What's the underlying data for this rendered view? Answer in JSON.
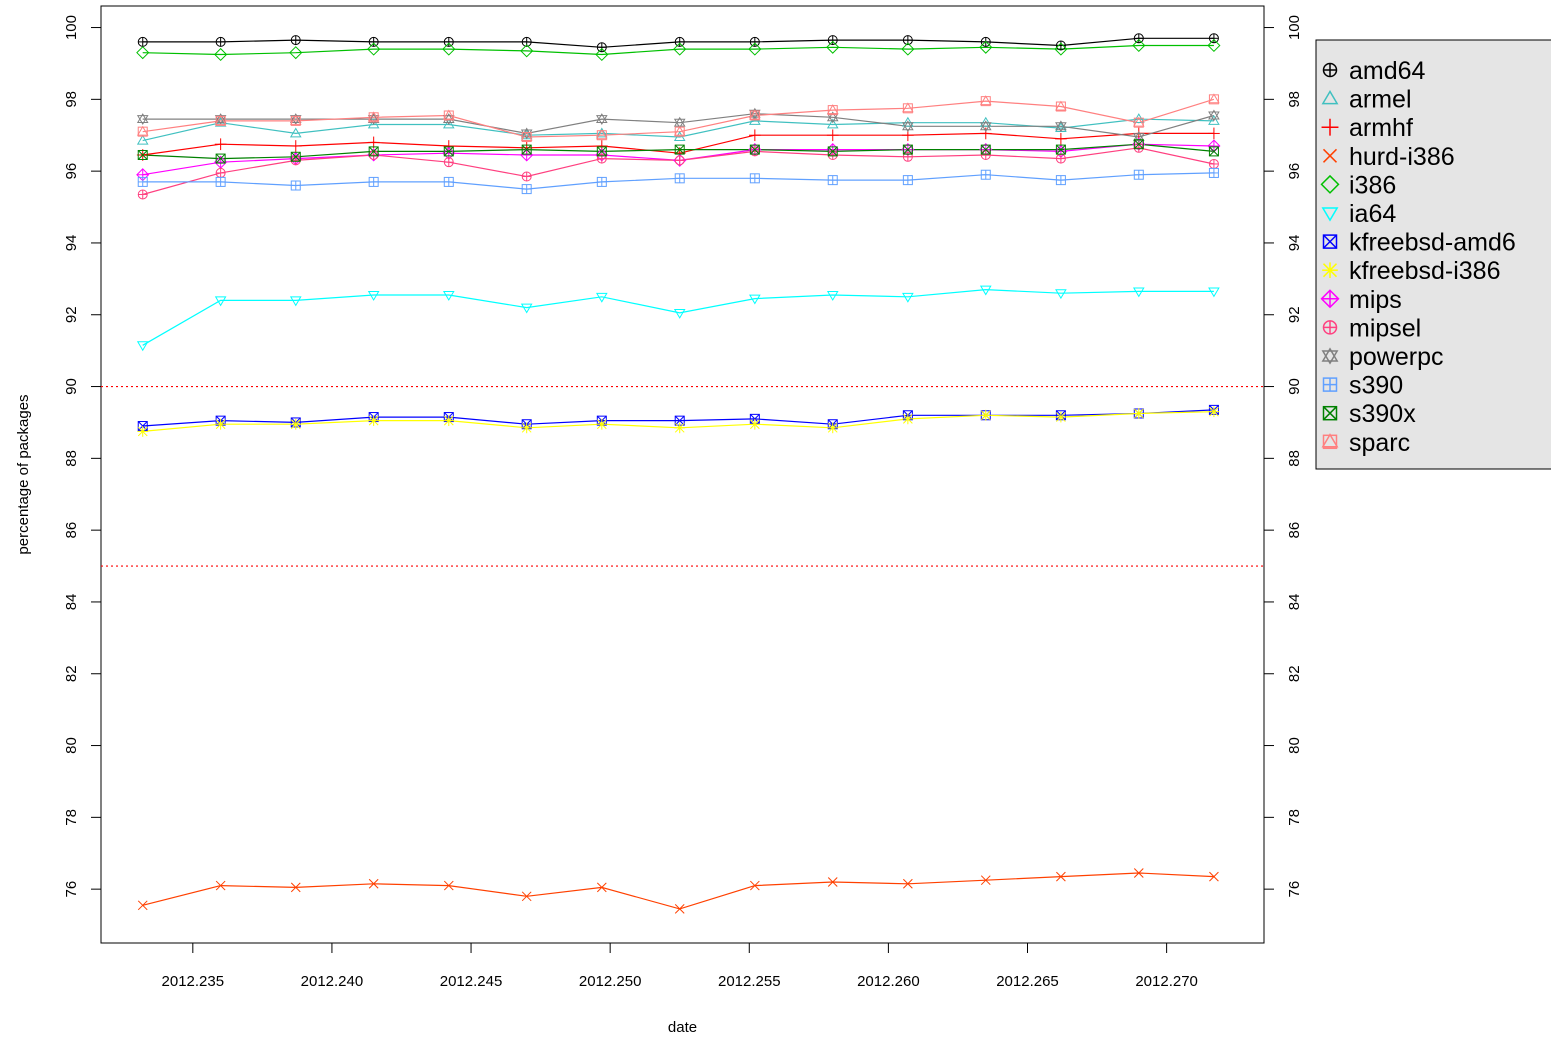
{
  "chart_data": {
    "type": "line",
    "title": "",
    "xlabel": "date",
    "ylabel": "percentage of packages",
    "xlim": [
      2012.2317,
      2012.2735
    ],
    "ylim": [
      74.5,
      100.6
    ],
    "x_ticks": [
      2012.235,
      2012.24,
      2012.245,
      2012.25,
      2012.255,
      2012.26,
      2012.265,
      2012.27
    ],
    "x_tick_labels": [
      "2012.235",
      "2012.240",
      "2012.245",
      "2012.250",
      "2012.255",
      "2012.260",
      "2012.265",
      "2012.270"
    ],
    "y_ticks": [
      76,
      78,
      80,
      82,
      84,
      86,
      88,
      90,
      92,
      94,
      96,
      98,
      100
    ],
    "y_tick_labels": [
      "76",
      "78",
      "80",
      "82",
      "84",
      "86",
      "88",
      "90",
      "92",
      "94",
      "96",
      "98",
      "100"
    ],
    "reference_lines": [
      {
        "y": 90,
        "color": "#ff0000",
        "style": "dotted"
      },
      {
        "y": 85,
        "color": "#ff0000",
        "style": "dotted"
      }
    ],
    "grid": false,
    "legend_position": "right",
    "x": [
      2012.2332,
      2012.236,
      2012.2387,
      2012.2415,
      2012.2442,
      2012.247,
      2012.2497,
      2012.2525,
      2012.2552,
      2012.258,
      2012.2607,
      2012.2635,
      2012.2662,
      2012.269,
      2012.2717
    ],
    "series": [
      {
        "name": "amd64",
        "color": "#000000",
        "marker": "circle-plus",
        "values": [
          99.6,
          99.6,
          99.65,
          99.6,
          99.6,
          99.6,
          99.45,
          99.6,
          99.6,
          99.65,
          99.65,
          99.6,
          99.5,
          99.7,
          99.7
        ]
      },
      {
        "name": "armel",
        "color": "#40c0c0",
        "marker": "triangle",
        "values": [
          96.85,
          97.35,
          97.05,
          97.3,
          97.3,
          97.0,
          97.05,
          96.95,
          97.4,
          97.3,
          97.35,
          97.35,
          97.2,
          97.45,
          97.4
        ]
      },
      {
        "name": "armhf",
        "color": "#ff0000",
        "marker": "plus",
        "values": [
          96.45,
          96.75,
          96.7,
          96.8,
          96.7,
          96.65,
          96.7,
          96.5,
          97.0,
          97.0,
          97.0,
          97.05,
          96.9,
          97.05,
          97.05
        ]
      },
      {
        "name": "hurd-i386",
        "color": "#ff4000",
        "marker": "cross",
        "values": [
          75.55,
          76.1,
          76.05,
          76.15,
          76.1,
          75.8,
          76.05,
          75.45,
          76.1,
          76.2,
          76.15,
          76.25,
          76.35,
          76.45,
          76.35
        ]
      },
      {
        "name": "i386",
        "color": "#00c000",
        "marker": "diamond",
        "values": [
          99.3,
          99.25,
          99.3,
          99.4,
          99.4,
          99.35,
          99.25,
          99.4,
          99.4,
          99.45,
          99.4,
          99.45,
          99.4,
          99.5,
          99.5
        ]
      },
      {
        "name": "ia64",
        "color": "#00ffff",
        "marker": "triangle-down",
        "values": [
          91.15,
          92.4,
          92.4,
          92.55,
          92.55,
          92.2,
          92.5,
          92.05,
          92.45,
          92.55,
          92.5,
          92.7,
          92.6,
          92.65,
          92.65
        ]
      },
      {
        "name": "kfreebsd-amd64",
        "legend_label": "kfreebsd-amd6",
        "color": "#0000ff",
        "marker": "square-cross",
        "values": [
          88.9,
          89.05,
          89.0,
          89.15,
          89.15,
          88.95,
          89.05,
          89.05,
          89.1,
          88.95,
          89.2,
          89.2,
          89.2,
          89.25,
          89.35
        ]
      },
      {
        "name": "kfreebsd-i386",
        "color": "#ffff00",
        "marker": "star",
        "values": [
          88.75,
          88.95,
          88.95,
          89.05,
          89.05,
          88.85,
          88.95,
          88.85,
          88.95,
          88.85,
          89.1,
          89.2,
          89.15,
          89.25,
          89.3
        ]
      },
      {
        "name": "mips",
        "color": "#ff00ff",
        "marker": "diamond-plus",
        "values": [
          95.9,
          96.25,
          96.35,
          96.45,
          96.5,
          96.45,
          96.45,
          96.3,
          96.6,
          96.6,
          96.6,
          96.6,
          96.55,
          96.75,
          96.7
        ]
      },
      {
        "name": "mipsel",
        "color": "#ff4080",
        "marker": "circle-plus",
        "values": [
          95.35,
          95.95,
          96.3,
          96.45,
          96.25,
          95.85,
          96.35,
          96.3,
          96.55,
          96.45,
          96.4,
          96.45,
          96.35,
          96.65,
          96.2
        ]
      },
      {
        "name": "powerpc",
        "color": "#808080",
        "marker": "star-of-david",
        "values": [
          97.45,
          97.45,
          97.45,
          97.45,
          97.45,
          97.05,
          97.45,
          97.35,
          97.6,
          97.5,
          97.25,
          97.25,
          97.25,
          96.95,
          97.55
        ]
      },
      {
        "name": "s390",
        "color": "#60a0ff",
        "marker": "square-plus",
        "values": [
          95.7,
          95.7,
          95.6,
          95.7,
          95.7,
          95.5,
          95.7,
          95.8,
          95.8,
          95.75,
          95.75,
          95.9,
          95.75,
          95.9,
          95.95
        ]
      },
      {
        "name": "s390x",
        "color": "#008000",
        "marker": "square-cross",
        "values": [
          96.45,
          96.35,
          96.4,
          96.55,
          96.55,
          96.6,
          96.55,
          96.6,
          96.6,
          96.55,
          96.6,
          96.6,
          96.6,
          96.75,
          96.55
        ]
      },
      {
        "name": "sparc",
        "color": "#ff8080",
        "marker": "triangle-square",
        "values": [
          97.1,
          97.4,
          97.4,
          97.5,
          97.55,
          96.95,
          97.0,
          97.1,
          97.55,
          97.7,
          97.75,
          97.95,
          97.8,
          97.35,
          98.0
        ]
      }
    ]
  }
}
